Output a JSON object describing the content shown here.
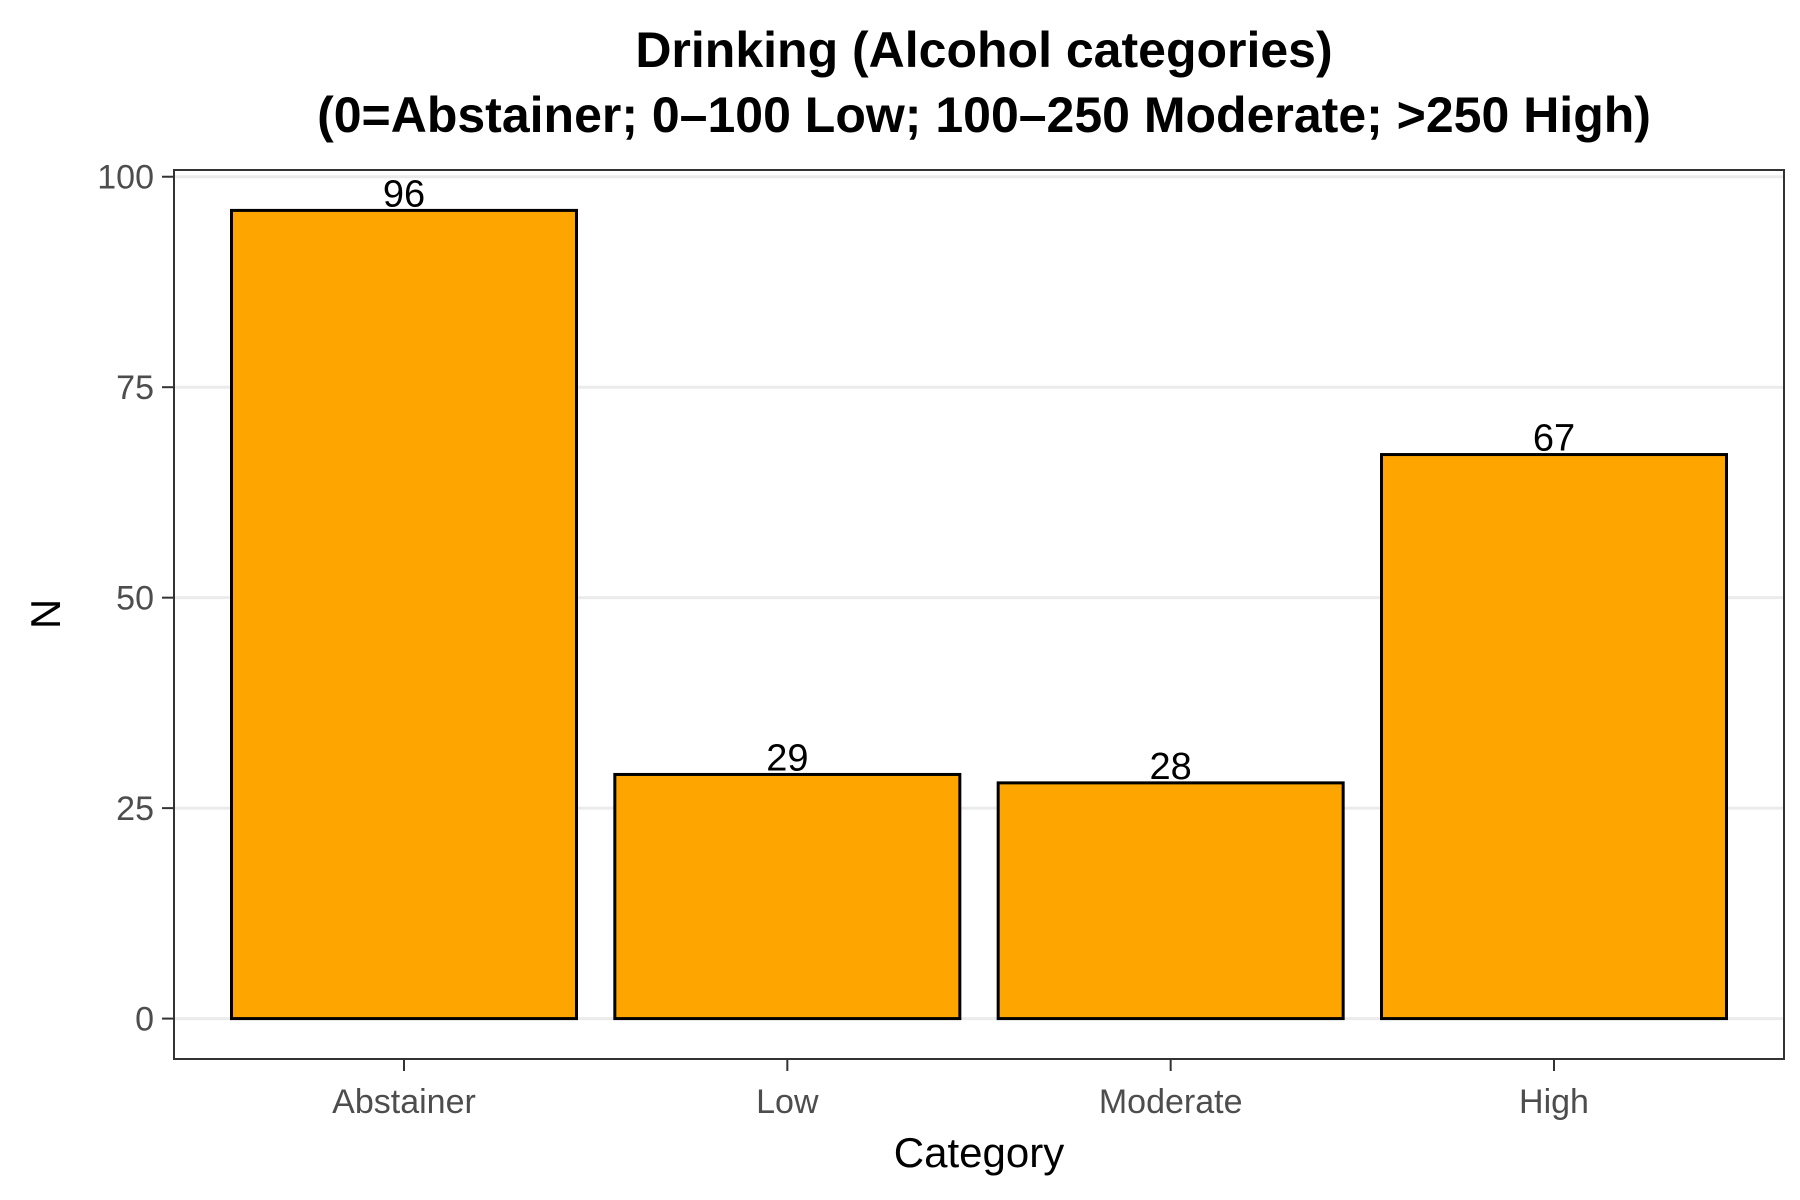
{
  "chart_data": {
    "type": "bar",
    "title_line1": "Drinking (Alcohol categories)",
    "title_line2": "(0=Abstainer; 0–100 Low; 100–250 Moderate; >250 High)",
    "xlabel": "Category",
    "ylabel": "N",
    "categories": [
      "Abstainer",
      "Low",
      "Moderate",
      "High"
    ],
    "values": [
      96,
      29,
      28,
      67
    ],
    "data_labels": [
      "96",
      "29",
      "28",
      "67"
    ],
    "yticks": [
      0,
      25,
      50,
      75,
      100
    ],
    "ytick_labels": [
      "0",
      "25",
      "50",
      "75",
      "100"
    ],
    "ylim": [
      -4.8,
      100.8
    ],
    "grid": "horizontal",
    "legend": "none",
    "bar_color": "#FFA500",
    "bar_edge_color": "#000000"
  }
}
